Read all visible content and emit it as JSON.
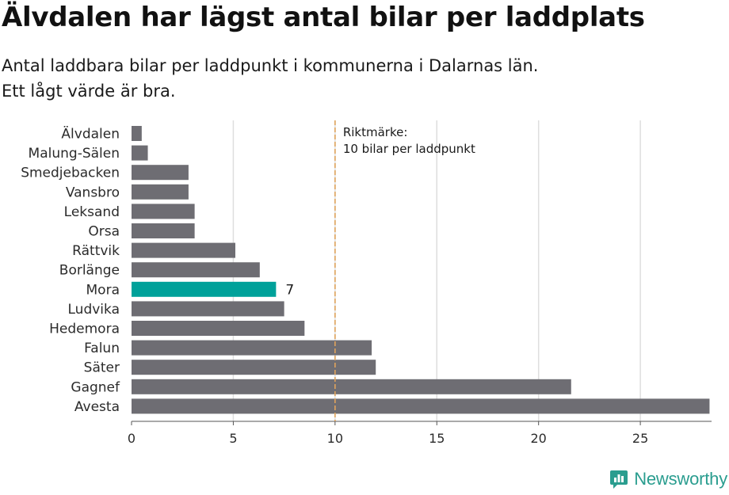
{
  "header": {
    "title": "Älvdalen har lägst antal bilar per laddplats",
    "subtitle_line1": "Antal laddbara bilar per laddpunkt i kommunerna i Dalarnas län.",
    "subtitle_line2": "Ett lågt värde är bra."
  },
  "chart_data": {
    "type": "bar",
    "orientation": "horizontal",
    "categories": [
      "Älvdalen",
      "Malung-Sälen",
      "Smedjebacken",
      "Vansbro",
      "Leksand",
      "Orsa",
      "Rättvik",
      "Borlänge",
      "Mora",
      "Ludvika",
      "Hedemora",
      "Falun",
      "Säter",
      "Gagnef",
      "Avesta"
    ],
    "values": [
      0.5,
      0.8,
      2.8,
      2.8,
      3.1,
      3.1,
      5.1,
      6.3,
      7.1,
      7.5,
      8.5,
      11.8,
      12.0,
      21.6,
      28.4
    ],
    "highlight": {
      "category": "Mora",
      "label": "7",
      "color": "#00a19a"
    },
    "bar_color": "#6e6d73",
    "xlim": [
      0,
      28.5
    ],
    "x_ticks": [
      0,
      5,
      10,
      15,
      20,
      25
    ],
    "grid": true,
    "reference_line": {
      "value": 10,
      "color": "#e0a35c",
      "label_line1": "Riktmärke:",
      "label_line2": "10 bilar per laddpunkt"
    },
    "title": "Älvdalen har lägst antal bilar per laddplats",
    "xlabel": "",
    "ylabel": ""
  },
  "brand": {
    "name": "Newsworthy",
    "icon": "newsworthy-logo-icon",
    "color": "#2a9d8f"
  }
}
